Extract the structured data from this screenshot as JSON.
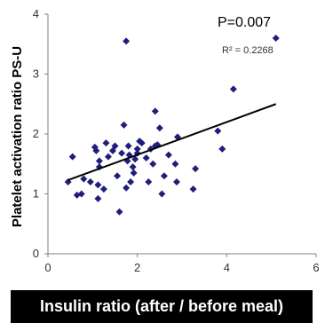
{
  "colors": {
    "marker": "#1f1f7a",
    "trendline": "#000000",
    "axis": "#808080"
  },
  "chart_data": {
    "type": "scatter",
    "title": "",
    "xlabel": "Insulin ratio (after / before meal)",
    "ylabel": "Platelet activation ratio PS-U",
    "xlim": [
      0,
      6
    ],
    "ylim": [
      0,
      4
    ],
    "x_ticks": [
      0,
      2,
      4,
      6
    ],
    "y_ticks": [
      0,
      1,
      2,
      3,
      4
    ],
    "annotations": {
      "p_value": "P=0.007",
      "r_squared": "R² = 0.2268"
    },
    "trendline": {
      "x": [
        0.45,
        5.1
      ],
      "y": [
        1.23,
        2.5
      ]
    },
    "series": [
      {
        "points": [
          [
            0.45,
            1.2
          ],
          [
            0.55,
            1.62
          ],
          [
            0.65,
            0.98
          ],
          [
            0.75,
            1.0
          ],
          [
            0.8,
            1.25
          ],
          [
            0.95,
            1.2
          ],
          [
            1.05,
            1.78
          ],
          [
            1.08,
            1.72
          ],
          [
            1.12,
            1.15
          ],
          [
            1.12,
            0.92
          ],
          [
            1.15,
            1.55
          ],
          [
            1.15,
            1.45
          ],
          [
            1.25,
            1.08
          ],
          [
            1.3,
            1.85
          ],
          [
            1.35,
            1.62
          ],
          [
            1.45,
            1.72
          ],
          [
            1.5,
            1.8
          ],
          [
            1.55,
            1.3
          ],
          [
            1.6,
            0.7
          ],
          [
            1.65,
            1.68
          ],
          [
            1.7,
            2.15
          ],
          [
            1.75,
            3.55
          ],
          [
            1.75,
            1.1
          ],
          [
            1.78,
            1.55
          ],
          [
            1.8,
            1.8
          ],
          [
            1.82,
            1.65
          ],
          [
            1.85,
            1.2
          ],
          [
            1.9,
            1.45
          ],
          [
            1.92,
            1.35
          ],
          [
            1.95,
            1.58
          ],
          [
            2.0,
            1.75
          ],
          [
            2.0,
            1.68
          ],
          [
            2.05,
            1.88
          ],
          [
            2.1,
            1.85
          ],
          [
            2.2,
            1.6
          ],
          [
            2.25,
            1.2
          ],
          [
            2.3,
            1.75
          ],
          [
            2.35,
            1.5
          ],
          [
            2.4,
            1.8
          ],
          [
            2.4,
            2.38
          ],
          [
            2.45,
            1.82
          ],
          [
            2.5,
            2.1
          ],
          [
            2.55,
            1.0
          ],
          [
            2.6,
            1.3
          ],
          [
            2.7,
            1.65
          ],
          [
            2.85,
            1.5
          ],
          [
            2.88,
            1.2
          ],
          [
            2.9,
            1.95
          ],
          [
            3.25,
            1.08
          ],
          [
            3.3,
            1.42
          ],
          [
            3.8,
            2.05
          ],
          [
            3.9,
            1.75
          ],
          [
            4.15,
            2.75
          ],
          [
            5.1,
            3.6
          ]
        ]
      }
    ]
  }
}
